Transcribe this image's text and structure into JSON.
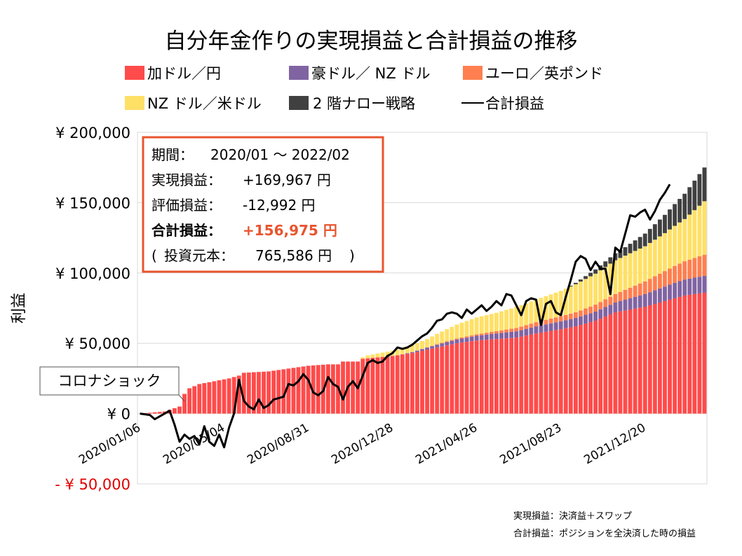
{
  "chart_data": {
    "type": "area",
    "title": "自分年金作りの実現損益と合計損益の推移",
    "ylabel": "利益",
    "xlabel": "",
    "ylim": [
      -50000,
      200000
    ],
    "y_ticks": [
      {
        "value": 200000,
        "label": "¥ 200,000"
      },
      {
        "value": 150000,
        "label": "¥ 150,000"
      },
      {
        "value": 100000,
        "label": "¥ 100,000"
      },
      {
        "value": 50000,
        "label": "¥ 50,000"
      },
      {
        "value": 0,
        "label": "¥ 0"
      },
      {
        "value": -50000,
        "label": "- ¥ 50,000"
      }
    ],
    "x_tick_labels": [
      "2020/01/06",
      "2020/05/04",
      "2020/08/31",
      "2020/12/28",
      "2021/04/26",
      "2021/08/23",
      "2021/12/20"
    ],
    "x_tick_indices": [
      0,
      17,
      34,
      51,
      68,
      85,
      102
    ],
    "n_weeks": 115,
    "legend": [
      {
        "label": "加ドル／円",
        "color": "#ff4b4b",
        "kind": "box"
      },
      {
        "label": "豪ドル／ NZ ドル",
        "color": "#8064a2",
        "kind": "box"
      },
      {
        "label": "ユーロ／英ポンド",
        "color": "#ff7f50",
        "kind": "box"
      },
      {
        "label": "NZ ドル／米ドル",
        "color": "#ffe066",
        "kind": "box"
      },
      {
        "label": "2 階ナロー戦略",
        "color": "#404040",
        "kind": "box"
      },
      {
        "label": "合計損益",
        "color": "#000000",
        "kind": "line"
      }
    ],
    "series": [
      {
        "name": "加ドル／円",
        "color": "#ff4b4b",
        "keypoints": [
          [
            0,
            0
          ],
          [
            5,
            1500
          ],
          [
            8,
            5000
          ],
          [
            9,
            14000
          ],
          [
            10,
            18000
          ],
          [
            12,
            21000
          ],
          [
            15,
            23000
          ],
          [
            18,
            25000
          ],
          [
            20,
            27000
          ],
          [
            21,
            29000
          ],
          [
            26,
            30000
          ],
          [
            30,
            32000
          ],
          [
            34,
            34000
          ],
          [
            38,
            35000
          ],
          [
            40,
            35000
          ],
          [
            41,
            37000
          ],
          [
            44,
            37000
          ],
          [
            45,
            39000
          ],
          [
            51,
            41000
          ],
          [
            55,
            43000
          ],
          [
            60,
            47000
          ],
          [
            64,
            50000
          ],
          [
            68,
            52000
          ],
          [
            72,
            53000
          ],
          [
            76,
            54000
          ],
          [
            80,
            57000
          ],
          [
            85,
            60000
          ],
          [
            88,
            62000
          ],
          [
            92,
            66000
          ],
          [
            96,
            72000
          ],
          [
            102,
            76000
          ],
          [
            106,
            80000
          ],
          [
            110,
            84000
          ],
          [
            114,
            86000
          ]
        ]
      },
      {
        "name": "豪ドル／ NZ ドル",
        "color": "#8064a2",
        "keypoints": [
          [
            0,
            0
          ],
          [
            44,
            0
          ],
          [
            52,
            0
          ],
          [
            56,
            1000
          ],
          [
            60,
            2000
          ],
          [
            66,
            3000
          ],
          [
            72,
            4000
          ],
          [
            80,
            5000
          ],
          [
            88,
            6000
          ],
          [
            96,
            7000
          ],
          [
            102,
            9000
          ],
          [
            108,
            11000
          ],
          [
            114,
            12000
          ]
        ]
      },
      {
        "name": "ユーロ／英ポンド",
        "color": "#ff7f50",
        "keypoints": [
          [
            0,
            0
          ],
          [
            56,
            0
          ],
          [
            62,
            500
          ],
          [
            68,
            1000
          ],
          [
            74,
            2000
          ],
          [
            80,
            3000
          ],
          [
            88,
            4000
          ],
          [
            96,
            6000
          ],
          [
            102,
            9000
          ],
          [
            108,
            12000
          ],
          [
            114,
            15000
          ]
        ]
      },
      {
        "name": "NZ ドル／米ドル",
        "color": "#ffe066",
        "keypoints": [
          [
            0,
            0
          ],
          [
            44,
            0
          ],
          [
            46,
            2000
          ],
          [
            52,
            4000
          ],
          [
            58,
            6000
          ],
          [
            64,
            10000
          ],
          [
            68,
            12000
          ],
          [
            72,
            13000
          ],
          [
            76,
            15000
          ],
          [
            80,
            16000
          ],
          [
            85,
            18000
          ],
          [
            88,
            20000
          ],
          [
            92,
            22000
          ],
          [
            96,
            24000
          ],
          [
            102,
            25000
          ],
          [
            106,
            27000
          ],
          [
            110,
            30000
          ],
          [
            114,
            38000
          ]
        ]
      },
      {
        "name": "2 階ナロー戦略",
        "color": "#404040",
        "keypoints": [
          [
            0,
            0
          ],
          [
            86,
            0
          ],
          [
            90,
            2000
          ],
          [
            94,
            4000
          ],
          [
            98,
            6000
          ],
          [
            102,
            9000
          ],
          [
            106,
            13000
          ],
          [
            110,
            18000
          ],
          [
            114,
            24000
          ]
        ]
      }
    ],
    "total_line": {
      "name": "合計損益",
      "color": "#000000",
      "keypoints": [
        [
          0,
          0
        ],
        [
          2,
          -1000
        ],
        [
          3,
          -4000
        ],
        [
          5,
          0
        ],
        [
          6,
          2000
        ],
        [
          7,
          -8000
        ],
        [
          8,
          -20000
        ],
        [
          9,
          -15000
        ],
        [
          10,
          -18000
        ],
        [
          11,
          -16000
        ],
        [
          12,
          -22000
        ],
        [
          13,
          -9000
        ],
        [
          14,
          -20000
        ],
        [
          15,
          -23000
        ],
        [
          16,
          -15000
        ],
        [
          17,
          -24000
        ],
        [
          18,
          -10000
        ],
        [
          19,
          0
        ],
        [
          20,
          24000
        ],
        [
          21,
          9000
        ],
        [
          22,
          5000
        ],
        [
          23,
          3000
        ],
        [
          24,
          10000
        ],
        [
          25,
          4000
        ],
        [
          26,
          6000
        ],
        [
          27,
          10000
        ],
        [
          28,
          11000
        ],
        [
          29,
          12000
        ],
        [
          30,
          21000
        ],
        [
          31,
          20000
        ],
        [
          32,
          23000
        ],
        [
          33,
          28000
        ],
        [
          34,
          24000
        ],
        [
          35,
          15000
        ],
        [
          36,
          13000
        ],
        [
          37,
          16000
        ],
        [
          38,
          26000
        ],
        [
          39,
          21000
        ],
        [
          40,
          19000
        ],
        [
          41,
          10000
        ],
        [
          42,
          19000
        ],
        [
          43,
          23000
        ],
        [
          44,
          18000
        ],
        [
          45,
          27000
        ],
        [
          46,
          36000
        ],
        [
          47,
          38000
        ],
        [
          48,
          36000
        ],
        [
          49,
          37000
        ],
        [
          50,
          41000
        ],
        [
          51,
          43000
        ],
        [
          52,
          47000
        ],
        [
          53,
          46000
        ],
        [
          54,
          47000
        ],
        [
          55,
          49000
        ],
        [
          56,
          52000
        ],
        [
          57,
          55000
        ],
        [
          58,
          57000
        ],
        [
          59,
          61000
        ],
        [
          60,
          66000
        ],
        [
          61,
          67000
        ],
        [
          62,
          71000
        ],
        [
          63,
          72000
        ],
        [
          64,
          71000
        ],
        [
          65,
          68000
        ],
        [
          66,
          74000
        ],
        [
          67,
          71000
        ],
        [
          68,
          74000
        ],
        [
          69,
          77000
        ],
        [
          70,
          73000
        ],
        [
          71,
          76000
        ],
        [
          72,
          80000
        ],
        [
          73,
          77000
        ],
        [
          74,
          85000
        ],
        [
          75,
          84000
        ],
        [
          76,
          77000
        ],
        [
          77,
          70000
        ],
        [
          78,
          80000
        ],
        [
          79,
          82000
        ],
        [
          80,
          81000
        ],
        [
          81,
          63000
        ],
        [
          82,
          78000
        ],
        [
          83,
          80000
        ],
        [
          84,
          72000
        ],
        [
          85,
          70000
        ],
        [
          86,
          83000
        ],
        [
          87,
          95000
        ],
        [
          88,
          108000
        ],
        [
          89,
          112000
        ],
        [
          90,
          110000
        ],
        [
          91,
          102000
        ],
        [
          92,
          108000
        ],
        [
          93,
          103000
        ],
        [
          94,
          103000
        ],
        [
          95,
          85000
        ],
        [
          96,
          118000
        ],
        [
          97,
          115000
        ],
        [
          98,
          128000
        ],
        [
          99,
          141000
        ],
        [
          100,
          140000
        ],
        [
          101,
          143000
        ],
        [
          102,
          145000
        ],
        [
          103,
          138000
        ],
        [
          104,
          144000
        ],
        [
          105,
          152000
        ],
        [
          106,
          157000
        ],
        [
          107,
          163000
        ]
      ]
    },
    "annotation": {
      "text": "コロナショック",
      "at_index": 9
    }
  },
  "info_box": {
    "period_label": "期間：",
    "period_value": "2020/01 ～ 2022/02",
    "realized_label": "実現損益：",
    "realized_value": "+169,967 円",
    "unrealized_label": "評価損益：",
    "unrealized_value": "-12,992 円",
    "total_label": "合計損益：",
    "total_value": "+156,975 円",
    "principal_open": "(",
    "principal_label": "投資元本：",
    "principal_value": "765,586 円",
    "principal_close": ")",
    "border_color": "#e8552f",
    "highlight_color": "#e8552f"
  },
  "notes": [
    "実現損益：決済益＋スワップ",
    "合計損益：ポジションを全決済した時の損益"
  ]
}
